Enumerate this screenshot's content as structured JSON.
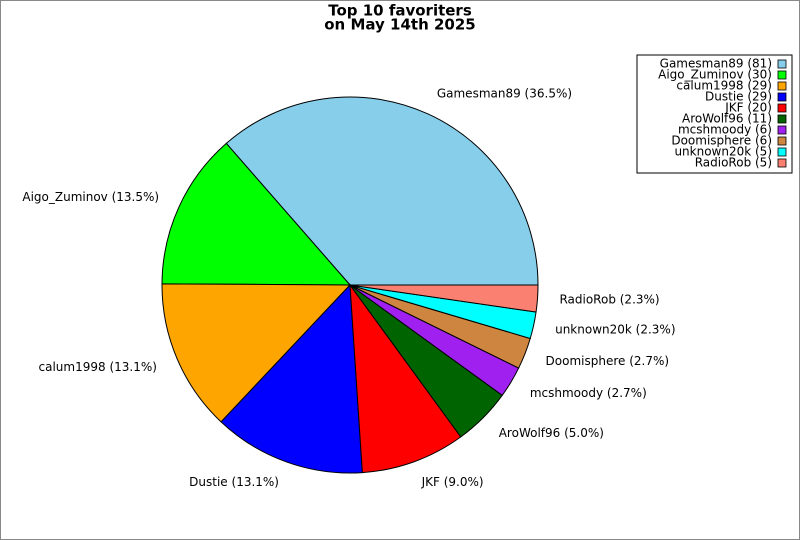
{
  "chart_data": {
    "type": "pie",
    "title": "Top 10 favoriters",
    "subtitle": "on May 14th 2025",
    "categories": [
      "Gamesman89",
      "Aigo_Zuminov",
      "calum1998",
      "Dustie",
      "JKF",
      "AroWolf96",
      "mcshmoody",
      "Doomisphere",
      "unknown20k",
      "RadioRob"
    ],
    "values": [
      36.5,
      13.5,
      13.1,
      13.1,
      9.0,
      5.0,
      2.7,
      2.7,
      2.3,
      2.3
    ],
    "value_labels": [
      "Gamesman89 (36.5%)",
      "Aigo_Zuminov (13.5%)",
      "calum1998 (13.1%)",
      "Dustie (13.1%)",
      "JKF (9.0%)",
      "AroWolf96 (5.0%)",
      "mcshmoody (2.7%)",
      "Doomisphere (2.7%)",
      "unknown20k (2.3%)",
      "RadioRob (2.3%)"
    ],
    "legend_labels": [
      "Gamesman89 (81)",
      "Aigo_Zuminov (30)",
      "calum1998 (29)",
      "Dustie (29)",
      "JKF (20)",
      "AroWolf96 (11)",
      "mcshmoody (6)",
      "Doomisphere (6)",
      "unknown20k (5)",
      "RadioRob (5)"
    ],
    "colors": [
      "#87ceeb",
      "#00ff00",
      "#ffa500",
      "#0000ff",
      "#ff0000",
      "#006400",
      "#a020f0",
      "#cd853f",
      "#00ffff",
      "#fa8072"
    ],
    "legend": "upper right"
  }
}
